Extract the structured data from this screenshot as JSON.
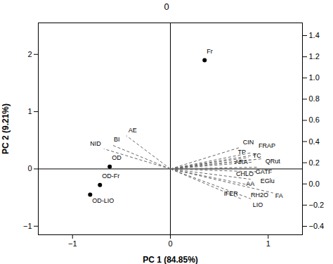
{
  "chart_data": {
    "type": "biplot",
    "title": "0",
    "xlabel": "PC 1 (84.85%)",
    "ylabel": "PC 2 (9.21%)",
    "xlim": [
      -1.35,
      1.35
    ],
    "ylim": [
      -1.15,
      2.55
    ],
    "xticks": [
      -1,
      0,
      1
    ],
    "yticks": [
      -1,
      0,
      1,
      2
    ],
    "y2lim": [
      -0.48,
      1.52
    ],
    "y2ticks": [
      -0.4,
      -0.2,
      {
        "value": 0,
        "label": "0.0"
      },
      0.2,
      0.4,
      0.6,
      0.8,
      {
        "value": 1,
        "label": "1.0"
      },
      1.2,
      1.4
    ],
    "grid": false,
    "scores": {
      "color": "#000000",
      "marker": "circle",
      "points": [
        {
          "label": "Fr",
          "x": 0.35,
          "y": 1.9
        },
        {
          "label": "OD",
          "x": -0.62,
          "y": 0.04
        },
        {
          "label": "OD-Fr",
          "x": -0.72,
          "y": -0.28
        },
        {
          "label": "OD-LIO",
          "x": -0.82,
          "y": -0.45
        }
      ]
    },
    "loadings": {
      "color": "#666666",
      "line_style": "dashed",
      "points": [
        {
          "label": "CIN",
          "x": 0.72,
          "y": 0.38
        },
        {
          "label": "TC",
          "x": 0.82,
          "y": 0.28
        },
        {
          "label": "FRAP",
          "x": 0.88,
          "y": 0.25
        },
        {
          "label": "TP",
          "x": 0.8,
          "y": 0.2
        },
        {
          "label": "QRut",
          "x": 0.95,
          "y": 0.18
        },
        {
          "label": "ARA",
          "x": 0.82,
          "y": 0.16
        },
        {
          "label": "GATF",
          "x": 0.85,
          "y": 0.12
        },
        {
          "label": "EGlu",
          "x": 0.9,
          "y": 0.03
        },
        {
          "label": "CHLO",
          "x": 0.88,
          "y": -0.05
        },
        {
          "label": "AA",
          "x": 0.82,
          "y": -0.18
        },
        {
          "label": "RH2O",
          "x": 0.8,
          "y": -0.28
        },
        {
          "label": "FA",
          "x": 1.05,
          "y": -0.42
        },
        {
          "label": "iFER",
          "x": 0.72,
          "y": -0.52
        },
        {
          "label": "LIO",
          "x": 0.82,
          "y": -0.52
        },
        {
          "label": "AE",
          "x": -0.45,
          "y": 0.58
        },
        {
          "label": "BI",
          "x": -0.6,
          "y": 0.42
        },
        {
          "label": "NID",
          "x": -0.68,
          "y": 0.35
        }
      ]
    }
  }
}
